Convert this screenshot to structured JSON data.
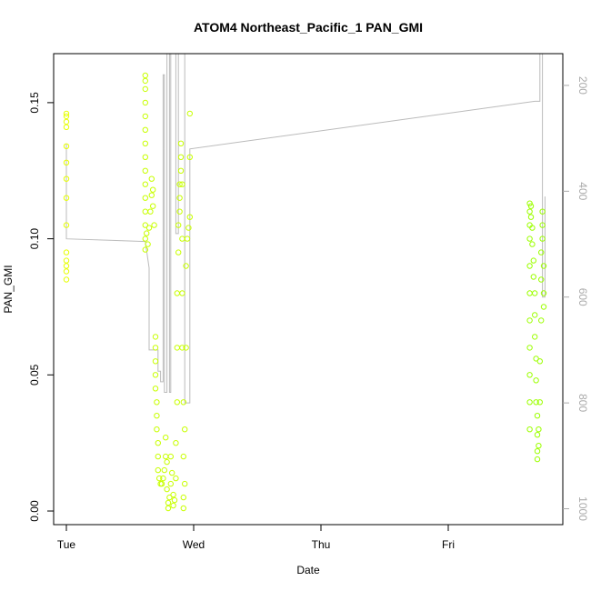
{
  "chart_data": {
    "type": "scatter",
    "title": "ATOM4 Northeast_Pacific_1 PAN_GMI",
    "xlabel": "Date",
    "ylabel": "PAN_GMI",
    "x_ticks": [
      "Tue",
      "Wed",
      "Thu",
      "Fri"
    ],
    "y_ticks": [
      "0.00",
      "0.05",
      "0.10",
      "0.15"
    ],
    "ylim": [
      -0.005,
      0.168
    ],
    "xlim": [
      -0.1,
      3.9
    ],
    "y2_ticks": [
      "200",
      "400",
      "600",
      "800",
      "1000"
    ],
    "y2lim": [
      1030,
      140
    ],
    "grid": false,
    "point_colors": [
      "#e6ff00",
      "#c8ff00",
      "#9cff00"
    ],
    "line_color": "#bbbbbb",
    "secondary_series": [
      [
        0.0,
        470
      ],
      [
        0.0,
        400
      ],
      [
        0.0,
        310
      ],
      [
        0.0,
        310
      ],
      [
        0.0,
        490
      ],
      [
        0.62,
        495
      ],
      [
        0.65,
        545
      ],
      [
        0.65,
        700
      ],
      [
        0.72,
        700
      ],
      [
        0.72,
        740
      ],
      [
        0.74,
        740
      ],
      [
        0.74,
        760
      ],
      [
        0.76,
        760
      ],
      [
        0.76,
        180
      ],
      [
        0.77,
        180
      ],
      [
        0.77,
        780
      ],
      [
        0.79,
        780
      ],
      [
        0.79,
        140
      ],
      [
        0.81,
        140
      ],
      [
        0.81,
        780
      ],
      [
        0.82,
        780
      ],
      [
        0.82,
        140
      ],
      [
        0.86,
        140
      ],
      [
        0.86,
        480
      ],
      [
        0.88,
        480
      ],
      [
        0.88,
        140
      ],
      [
        0.93,
        140
      ],
      [
        0.93,
        800
      ],
      [
        0.97,
        800
      ],
      [
        0.97,
        320
      ],
      [
        3.68,
        230
      ],
      [
        3.72,
        230
      ],
      [
        3.72,
        140
      ],
      [
        3.74,
        140
      ],
      [
        3.74,
        600
      ],
      [
        3.76,
        600
      ],
      [
        3.76,
        410
      ]
    ],
    "series": [
      {
        "values": [
          [
            0.0,
            0.146
          ],
          [
            0.0,
            0.145
          ],
          [
            0.0,
            0.143
          ],
          [
            0.0,
            0.141
          ],
          [
            0.0,
            0.134
          ],
          [
            0.0,
            0.128
          ],
          [
            0.0,
            0.122
          ],
          [
            0.0,
            0.115
          ],
          [
            0.0,
            0.105
          ],
          [
            0.0,
            0.095
          ],
          [
            0.0,
            0.092
          ],
          [
            0.0,
            0.09
          ],
          [
            0.0,
            0.088
          ],
          [
            0.0,
            0.085
          ]
        ]
      },
      {
        "values": [
          [
            0.62,
            0.16
          ],
          [
            0.62,
            0.158
          ],
          [
            0.62,
            0.155
          ],
          [
            0.62,
            0.15
          ],
          [
            0.62,
            0.145
          ],
          [
            0.62,
            0.14
          ],
          [
            0.62,
            0.135
          ],
          [
            0.62,
            0.13
          ],
          [
            0.62,
            0.125
          ],
          [
            0.62,
            0.12
          ],
          [
            0.62,
            0.115
          ],
          [
            0.62,
            0.11
          ],
          [
            0.62,
            0.105
          ],
          [
            0.62,
            0.1
          ],
          [
            0.62,
            0.096
          ],
          [
            0.63,
            0.102
          ],
          [
            0.64,
            0.098
          ],
          [
            0.65,
            0.104
          ],
          [
            0.66,
            0.11
          ],
          [
            0.67,
            0.116
          ],
          [
            0.67,
            0.122
          ],
          [
            0.68,
            0.118
          ],
          [
            0.68,
            0.112
          ],
          [
            0.69,
            0.105
          ],
          [
            0.7,
            0.064
          ],
          [
            0.7,
            0.06
          ],
          [
            0.7,
            0.055
          ],
          [
            0.7,
            0.05
          ],
          [
            0.7,
            0.045
          ],
          [
            0.71,
            0.04
          ],
          [
            0.71,
            0.035
          ],
          [
            0.71,
            0.03
          ],
          [
            0.72,
            0.025
          ],
          [
            0.72,
            0.02
          ],
          [
            0.72,
            0.015
          ],
          [
            0.73,
            0.012
          ],
          [
            0.74,
            0.01
          ],
          [
            0.75,
            0.01
          ],
          [
            0.76,
            0.012
          ],
          [
            0.77,
            0.015
          ],
          [
            0.78,
            0.02
          ],
          [
            0.78,
            0.027
          ],
          [
            0.79,
            0.018
          ],
          [
            0.79,
            0.008
          ],
          [
            0.8,
            0.003
          ],
          [
            0.8,
            0.001
          ],
          [
            0.81,
            0.005
          ],
          [
            0.82,
            0.01
          ],
          [
            0.82,
            0.02
          ],
          [
            0.83,
            0.014
          ],
          [
            0.84,
            0.006
          ],
          [
            0.84,
            0.002
          ],
          [
            0.85,
            0.004
          ],
          [
            0.86,
            0.012
          ],
          [
            0.86,
            0.025
          ],
          [
            0.87,
            0.04
          ],
          [
            0.87,
            0.06
          ],
          [
            0.87,
            0.08
          ],
          [
            0.88,
            0.095
          ],
          [
            0.88,
            0.105
          ],
          [
            0.89,
            0.11
          ],
          [
            0.89,
            0.115
          ],
          [
            0.89,
            0.12
          ],
          [
            0.9,
            0.125
          ],
          [
            0.9,
            0.13
          ],
          [
            0.9,
            0.135
          ],
          [
            0.91,
            0.12
          ],
          [
            0.91,
            0.1
          ],
          [
            0.91,
            0.08
          ],
          [
            0.91,
            0.06
          ],
          [
            0.92,
            0.04
          ],
          [
            0.92,
            0.02
          ],
          [
            0.92,
            0.005
          ],
          [
            0.92,
            0.001
          ],
          [
            0.93,
            0.01
          ],
          [
            0.93,
            0.03
          ],
          [
            0.94,
            0.06
          ],
          [
            0.94,
            0.09
          ],
          [
            0.95,
            0.1
          ],
          [
            0.96,
            0.104
          ],
          [
            0.97,
            0.108
          ],
          [
            0.97,
            0.13
          ],
          [
            0.97,
            0.146
          ]
        ]
      },
      {
        "values": [
          [
            3.64,
            0.113
          ],
          [
            3.64,
            0.11
          ],
          [
            3.64,
            0.105
          ],
          [
            3.64,
            0.1
          ],
          [
            3.64,
            0.09
          ],
          [
            3.64,
            0.08
          ],
          [
            3.64,
            0.07
          ],
          [
            3.64,
            0.06
          ],
          [
            3.64,
            0.05
          ],
          [
            3.64,
            0.04
          ],
          [
            3.64,
            0.03
          ],
          [
            3.65,
            0.112
          ],
          [
            3.65,
            0.108
          ],
          [
            3.66,
            0.104
          ],
          [
            3.66,
            0.098
          ],
          [
            3.67,
            0.092
          ],
          [
            3.67,
            0.086
          ],
          [
            3.68,
            0.08
          ],
          [
            3.68,
            0.072
          ],
          [
            3.68,
            0.064
          ],
          [
            3.69,
            0.056
          ],
          [
            3.69,
            0.048
          ],
          [
            3.69,
            0.04
          ],
          [
            3.7,
            0.035
          ],
          [
            3.7,
            0.028
          ],
          [
            3.7,
            0.022
          ],
          [
            3.7,
            0.019
          ],
          [
            3.71,
            0.024
          ],
          [
            3.71,
            0.03
          ],
          [
            3.72,
            0.04
          ],
          [
            3.72,
            0.055
          ],
          [
            3.73,
            0.07
          ],
          [
            3.73,
            0.085
          ],
          [
            3.73,
            0.095
          ],
          [
            3.74,
            0.105
          ],
          [
            3.74,
            0.11
          ],
          [
            3.74,
            0.1
          ],
          [
            3.75,
            0.09
          ],
          [
            3.75,
            0.08
          ],
          [
            3.75,
            0.075
          ]
        ]
      }
    ]
  }
}
